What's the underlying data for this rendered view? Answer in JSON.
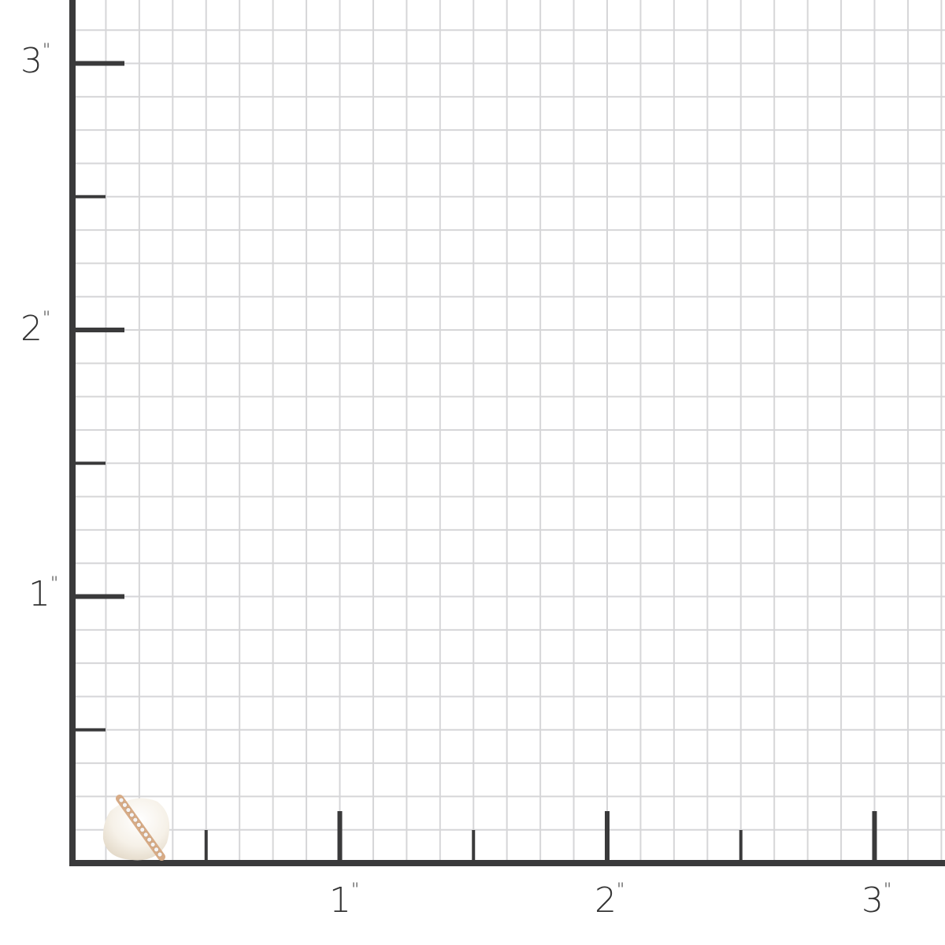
{
  "ruler": {
    "unit_symbol": "\"",
    "x_labels": [
      "1",
      "2",
      "3"
    ],
    "y_labels": [
      "1",
      "2",
      "3"
    ],
    "grid_divisions_per_inch": 8,
    "axis_color": "#3a3a3b",
    "grid_color": "#d6d6d8"
  },
  "product": {
    "name_icon": "pearl-diamond-earring-icon"
  }
}
